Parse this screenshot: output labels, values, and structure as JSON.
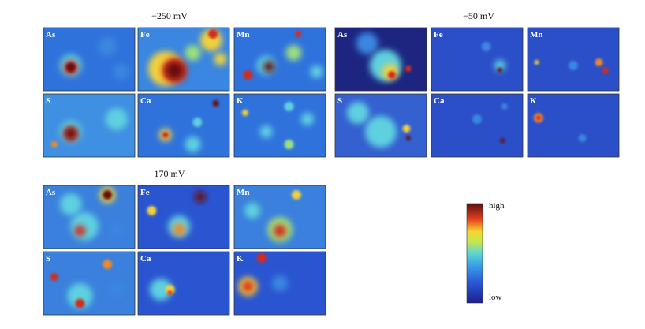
{
  "groups": [
    {
      "title": "−250 mV",
      "panels": [
        "As",
        "Fe",
        "Mn",
        "S",
        "Ca",
        "K"
      ]
    },
    {
      "title": "−50 mV",
      "panels": [
        "As",
        "Fe",
        "Mn",
        "S",
        "Ca",
        "K"
      ]
    },
    {
      "title": "170 mV",
      "panels": [
        "As",
        "Fe",
        "Mn",
        "S",
        "Ca",
        "K"
      ]
    }
  ],
  "colorbar": {
    "high": "high",
    "low": "low"
  }
}
